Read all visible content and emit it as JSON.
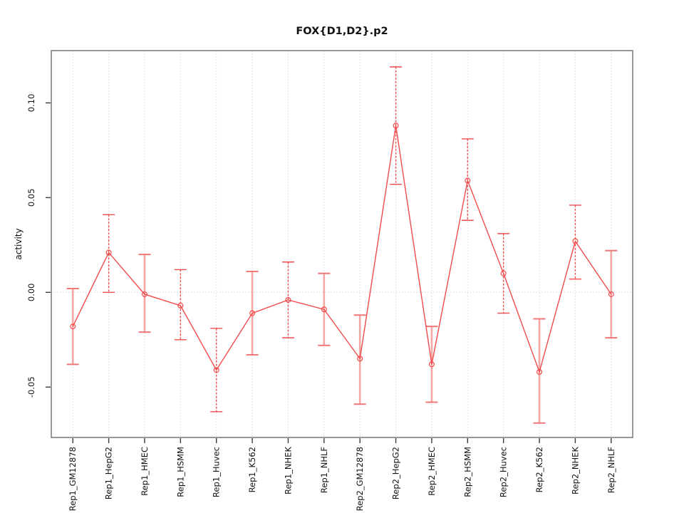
{
  "page": {
    "background": "#ffffff"
  },
  "chart_data": {
    "type": "line",
    "title": "FOX{D1,D2}.p2",
    "xlabel": "",
    "ylabel": "activity",
    "legend": "none",
    "grid": {
      "vertical_dotted_per_category": true,
      "horizontal_dotted_zero_line": true
    },
    "ylim": [
      -0.0766,
      0.1276
    ],
    "yticks": {
      "values": [
        -0.05,
        0.0,
        0.05,
        0.1
      ],
      "labels": [
        "-0.05",
        "0.00",
        "0.05",
        "0.10"
      ]
    },
    "categories": [
      "Rep1_GM12878",
      "Rep1_HepG2",
      "Rep1_HMEC",
      "Rep1_HSMM",
      "Rep1_Huvec",
      "Rep1_K562",
      "Rep1_NHEK",
      "Rep1_NHLF",
      "Rep2_GM12878",
      "Rep2_HepG2",
      "Rep2_HMEC",
      "Rep2_HSMM",
      "Rep2_Huvec",
      "Rep2_K562",
      "Rep2_NHEK",
      "Rep2_NHLF"
    ],
    "series": [
      {
        "name": "activity",
        "values": [
          -0.018,
          0.021,
          -0.001,
          -0.007,
          -0.041,
          -0.011,
          -0.004,
          -0.009,
          -0.035,
          0.088,
          -0.038,
          0.059,
          0.01,
          -0.042,
          0.027,
          -0.001
        ]
      }
    ],
    "error_bars": {
      "lower": [
        -0.038,
        0.0,
        -0.021,
        -0.025,
        -0.063,
        -0.033,
        -0.024,
        -0.028,
        -0.059,
        0.057,
        -0.058,
        0.038,
        -0.011,
        -0.069,
        0.007,
        -0.024
      ],
      "upper": [
        0.002,
        0.041,
        0.02,
        0.012,
        -0.019,
        0.011,
        0.016,
        0.01,
        -0.012,
        0.119,
        -0.018,
        0.081,
        0.031,
        -0.014,
        0.046,
        0.022
      ],
      "styles": [
        "solid-pink",
        "dashed-red",
        "solid-pink",
        "dashed-red",
        "dashed-red",
        "solid-pink",
        "dashed-red",
        "solid-pink",
        "solid-pink",
        "dashed-red",
        "solid-pink",
        "dashed-red",
        "dashed-red",
        "solid-pink",
        "dashed-red",
        "solid-pink"
      ]
    },
    "marker": "open-circle",
    "colors": {
      "series_red": "#f14b4b",
      "errorbar_pink": "#f7a6a6",
      "errorbar_cap_pink": "#ee7777",
      "grid_gray": "#d6d6d6",
      "box_gray": "#7f7f7f",
      "tick_dark": "#3c3c3c",
      "text_black": "#111111",
      "background": "#ffffff"
    }
  }
}
